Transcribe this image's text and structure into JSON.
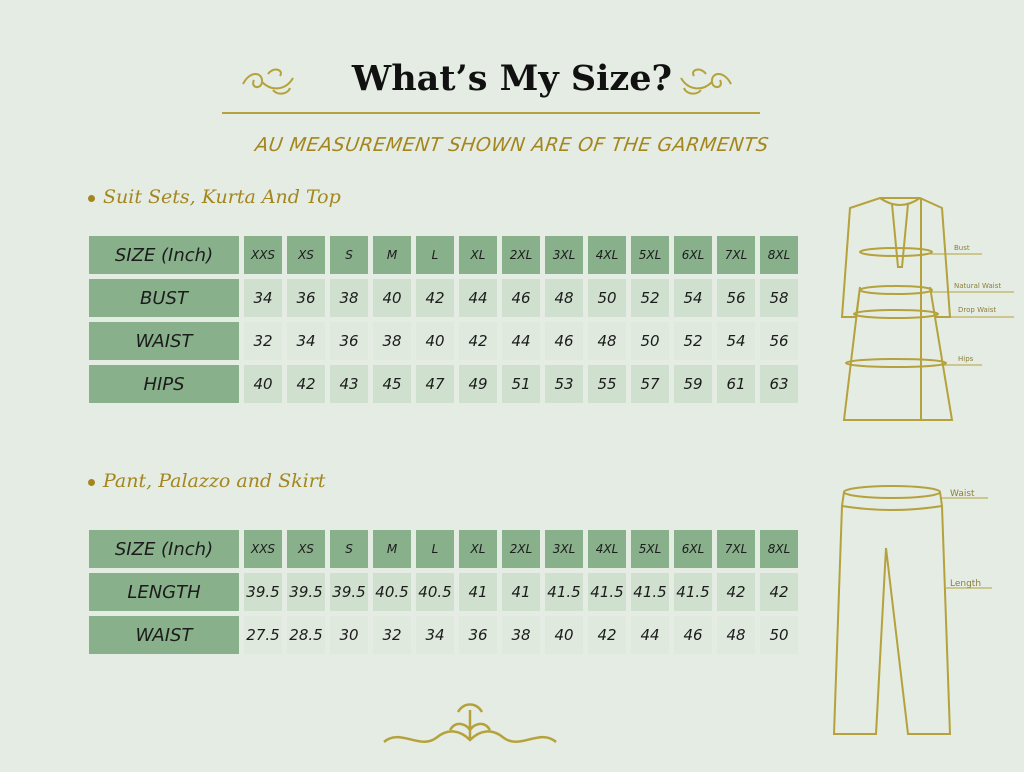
{
  "title": "What’s My Size?",
  "subtitle": "AU MEASUREMENT SHOWN ARE OF THE GARMENTS",
  "colors": {
    "header_cell": "#88b08b",
    "value_cell": "#cfe0cf",
    "gold": "#a4861e",
    "background": "#e4ece3"
  },
  "sections": [
    {
      "heading": "Suit Sets, Kurta And Top",
      "size_label": "SIZE (Inch)",
      "sizes": [
        "XXS",
        "XS",
        "S",
        "M",
        "L",
        "XL",
        "2XL",
        "3XL",
        "4XL",
        "5XL",
        "6XL",
        "7XL",
        "8XL"
      ],
      "rows": [
        {
          "label": "BUST",
          "values": [
            "34",
            "36",
            "38",
            "40",
            "42",
            "44",
            "46",
            "48",
            "50",
            "52",
            "54",
            "56",
            "58"
          ]
        },
        {
          "label": "WAIST",
          "values": [
            "32",
            "34",
            "36",
            "38",
            "40",
            "42",
            "44",
            "46",
            "48",
            "50",
            "52",
            "54",
            "56"
          ]
        },
        {
          "label": "HIPS",
          "values": [
            "40",
            "42",
            "43",
            "45",
            "47",
            "49",
            "51",
            "53",
            "55",
            "57",
            "59",
            "61",
            "63"
          ]
        }
      ],
      "diagram_labels": [
        "Bust",
        "Natural Waist",
        "Drop Waist",
        "Hips"
      ]
    },
    {
      "heading": "Pant, Palazzo and Skirt",
      "size_label": "SIZE (Inch)",
      "sizes": [
        "XXS",
        "XS",
        "S",
        "M",
        "L",
        "XL",
        "2XL",
        "3XL",
        "4XL",
        "5XL",
        "6XL",
        "7XL",
        "8XL"
      ],
      "rows": [
        {
          "label": "LENGTH",
          "values": [
            "39.5",
            "39.5",
            "39.5",
            "40.5",
            "40.5",
            "41",
            "41",
            "41.5",
            "41.5",
            "41.5",
            "41.5",
            "42",
            "42"
          ]
        },
        {
          "label": "WAIST",
          "values": [
            "27.5",
            "28.5",
            "30",
            "32",
            "34",
            "36",
            "38",
            "40",
            "42",
            "44",
            "46",
            "48",
            "50"
          ]
        }
      ],
      "diagram_labels": [
        "Waist",
        "Length"
      ]
    }
  ]
}
